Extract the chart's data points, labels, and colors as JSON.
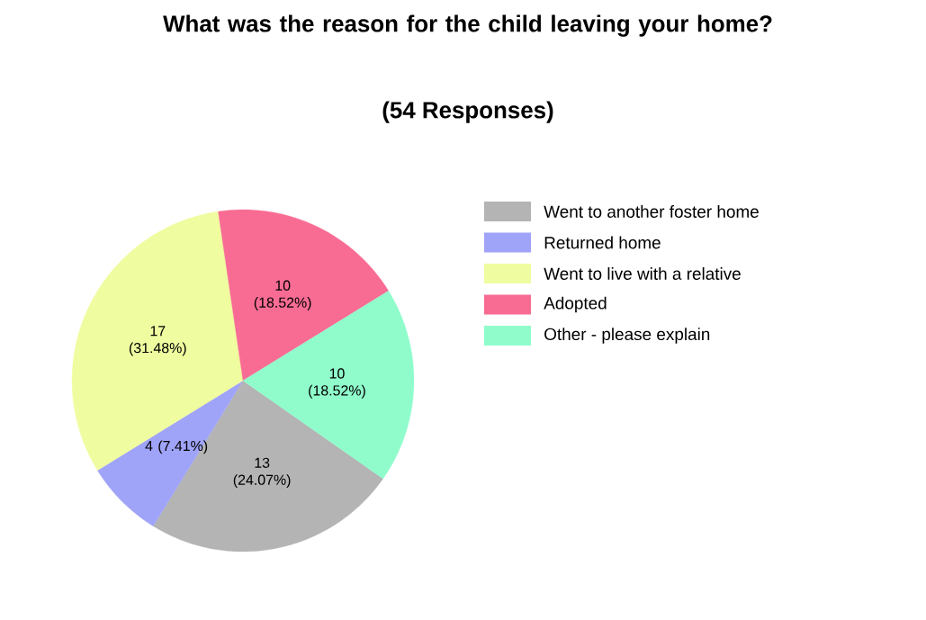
{
  "chart_data": {
    "type": "pie",
    "title": "What was the reason for the child leaving your home?",
    "subtitle": "(54  Responses)",
    "categories": [
      "Went to another foster home",
      "Returned home",
      "Went to live with a relative",
      "Adopted",
      "Other - please explain"
    ],
    "values": [
      13,
      4,
      17,
      10,
      10
    ],
    "colors": [
      "#b4b4b4",
      "#a0a4f8",
      "#f0fca0",
      "#f86c94",
      "#90fccc"
    ],
    "value_labels": [
      "13 (24.07%)",
      "4 (7.41%)",
      "17 (31.48%)",
      "10 (18.52%)",
      "10 (18.52%)"
    ],
    "legend": "right"
  }
}
